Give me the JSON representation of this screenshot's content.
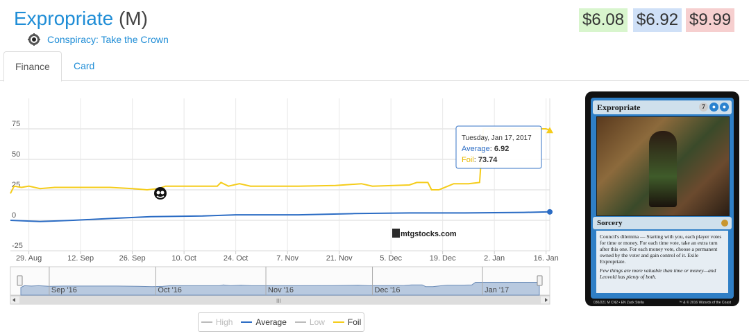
{
  "header": {
    "card_name": "Expropriate",
    "rarity": "(M)",
    "set_name": "Conspiracy: Take the Crown",
    "set_icon": "conspiracy-set-icon"
  },
  "prices": {
    "low": "$6.08",
    "average": "$6.92",
    "high": "$9.99"
  },
  "tabs": [
    {
      "label": "Finance",
      "active": true
    },
    {
      "label": "Card",
      "active": false
    }
  ],
  "tooltip": {
    "date": "Tuesday, Jan 17, 2017",
    "average_label": "Average",
    "average_value": "6.92",
    "foil_label": "Foil",
    "foil_value": "73.74"
  },
  "watermark": "mtgstocks.com",
  "colors": {
    "average": "#2b6cc4",
    "foil": "#f5cc1a",
    "high": "#bbbbbb",
    "low": "#bbbbbb",
    "navigator_fill": "#b8c9df",
    "accent": "#1f8dd6"
  },
  "chart_data": {
    "type": "line",
    "x_tick_labels": [
      "29. Aug",
      "12. Sep",
      "26. Sep",
      "10. Oct",
      "24. Oct",
      "7. Nov",
      "21. Nov",
      "5. Dec",
      "19. Dec",
      "2. Jan",
      "16. Jan"
    ],
    "y_tick_labels": [
      "75",
      "50",
      "25",
      "0",
      "-25"
    ],
    "ylim": [
      -25,
      100
    ],
    "xlim": [
      "2016-08-24",
      "2017-01-17"
    ],
    "grid": true,
    "legend_placement": "bottom-center",
    "series": [
      {
        "name": "Foil",
        "points": [
          [
            "2016-08-24",
            22
          ],
          [
            "2016-08-25",
            28
          ],
          [
            "2016-08-27",
            27
          ],
          [
            "2016-08-29",
            28
          ],
          [
            "2016-09-01",
            26
          ],
          [
            "2016-09-05",
            27
          ],
          [
            "2016-09-12",
            27
          ],
          [
            "2016-09-20",
            27
          ],
          [
            "2016-09-26",
            26
          ],
          [
            "2016-09-30",
            25
          ],
          [
            "2016-10-03",
            26
          ],
          [
            "2016-10-05",
            28
          ],
          [
            "2016-10-15",
            28
          ],
          [
            "2016-10-19",
            28
          ],
          [
            "2016-10-20",
            31
          ],
          [
            "2016-10-22",
            28
          ],
          [
            "2016-10-25",
            30
          ],
          [
            "2016-10-28",
            28
          ],
          [
            "2016-11-10",
            28
          ],
          [
            "2016-11-20",
            28.5
          ],
          [
            "2016-11-27",
            30
          ],
          [
            "2016-11-30",
            28
          ],
          [
            "2016-12-10",
            29
          ],
          [
            "2016-12-12",
            31
          ],
          [
            "2016-12-15",
            31
          ],
          [
            "2016-12-16",
            25
          ],
          [
            "2016-12-18",
            25
          ],
          [
            "2016-12-22",
            30
          ],
          [
            "2016-12-26",
            30
          ],
          [
            "2016-12-29",
            31
          ],
          [
            "2016-12-30",
            75
          ],
          [
            "2017-01-16",
            75
          ],
          [
            "2017-01-17",
            73.74
          ]
        ]
      },
      {
        "name": "Average",
        "points": [
          [
            "2016-08-24",
            0
          ],
          [
            "2016-09-01",
            -1
          ],
          [
            "2016-09-10",
            0
          ],
          [
            "2016-09-20",
            1.5
          ],
          [
            "2016-10-01",
            3
          ],
          [
            "2016-10-15",
            3.5
          ],
          [
            "2016-10-24",
            4.5
          ],
          [
            "2016-11-10",
            4.5
          ],
          [
            "2016-11-25",
            5.5
          ],
          [
            "2016-12-10",
            6
          ],
          [
            "2016-12-25",
            6
          ],
          [
            "2017-01-10",
            6.5
          ],
          [
            "2017-01-17",
            6.92
          ]
        ]
      }
    ],
    "navigator": {
      "x_tick_labels": [
        "Sep '16",
        "Oct '16",
        "Nov '16",
        "Dec '16",
        "Jan '17"
      ]
    },
    "legend": [
      {
        "name": "High",
        "enabled": false
      },
      {
        "name": "Average",
        "enabled": true
      },
      {
        "name": "Low",
        "enabled": false
      },
      {
        "name": "Foil",
        "enabled": true
      }
    ]
  },
  "card_image": {
    "title": "Expropriate",
    "mana_generic": "7",
    "type_line": "Sorcery",
    "rules_text": "Council's dilemma — Starting with you, each player votes for time or money. For each time vote, take an extra turn after this one. For each money vote, choose a permanent owned by the voter and gain control of it. Exile Expropriate.",
    "flavor_text": "Few things are more valuable than time or money—and Leovold has plenty of both.",
    "collector_info": "030/221 M",
    "set_code": "CN2 • EN",
    "artist": "Zack Stella",
    "copyright": "™ & © 2016 Wizards of the Coast"
  }
}
